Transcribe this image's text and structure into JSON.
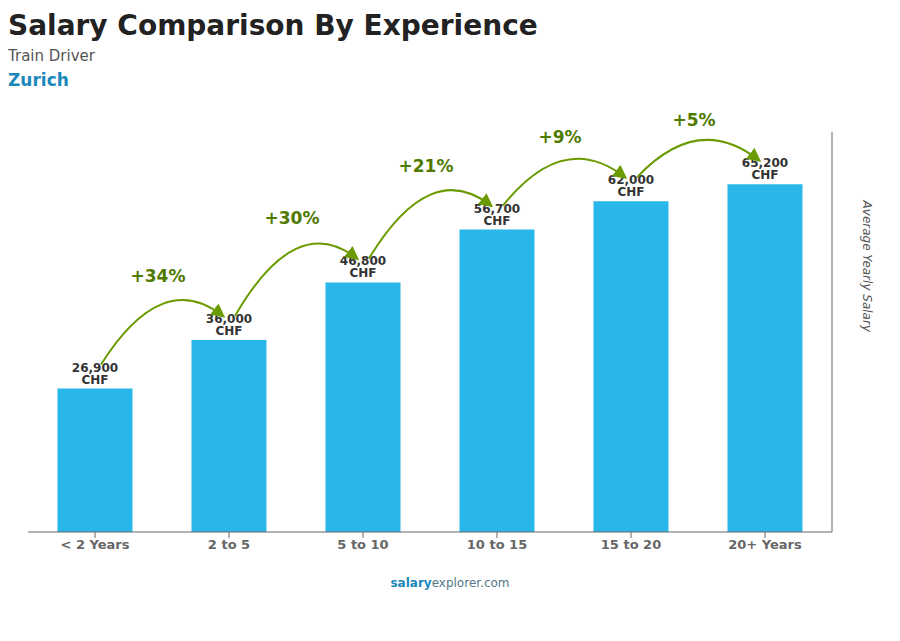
{
  "chart_data": {
    "type": "bar",
    "title": "Salary Comparison By Experience",
    "subtitle": [
      "Train Driver",
      "Zurich"
    ],
    "ylabel": "Average Yearly Salary",
    "footer": [
      "salary",
      "explorer.com"
    ],
    "categories": [
      "< 2 Years",
      "2 to 5",
      "5 to 10",
      "10 to 15",
      "15 to 20",
      "20+ Years"
    ],
    "values": [
      26900,
      36000,
      46800,
      56700,
      62000,
      65200
    ],
    "value_labels": [
      "26,900 CHF",
      "36,000 CHF",
      "46,800 CHF",
      "56,700 CHF",
      "62,000 CHF",
      "65,200 CHF"
    ],
    "annotations": [
      "+34%",
      "+30%",
      "+21%",
      "+9%",
      "+5%"
    ],
    "color": "#29b6e8",
    "ylim": [
      0,
      75000
    ],
    "grid": false,
    "data_labels": true,
    "tick_labels": "x"
  }
}
